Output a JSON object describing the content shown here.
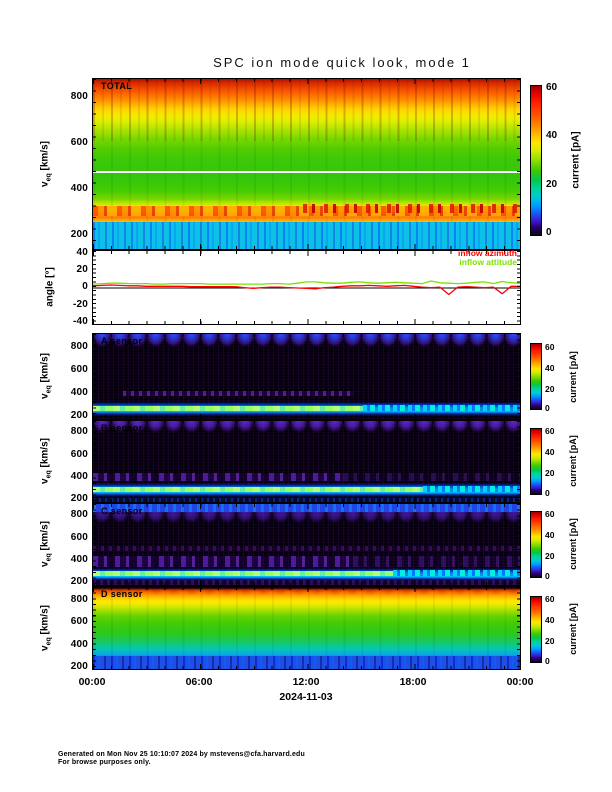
{
  "title": "SPC ion mode quick look, mode 1",
  "x_axis": {
    "tick_labels": [
      "00:00",
      "06:00",
      "12:00",
      "18:00",
      "00:00"
    ],
    "date_label": "2024-11-03"
  },
  "velocity_axis": {
    "v": "v",
    "sub": "eq",
    "unit": " [km/s]",
    "tick_labels": [
      "800",
      "600",
      "400",
      "200"
    ]
  },
  "angle_axis": {
    "label": "angle [°]",
    "tick_labels": [
      "40",
      "20",
      "0",
      "-20",
      "-40"
    ]
  },
  "colorbar": {
    "label": "current [pA]",
    "tick_labels": [
      "60",
      "40",
      "20",
      "0"
    ],
    "range": [
      0,
      60
    ],
    "scale_colors": [
      "#000000",
      "#28006e",
      "#3c14c8",
      "#0096ff",
      "#00c8dc",
      "#00c850",
      "#3cc800",
      "#8cdc00",
      "#d2ea00",
      "#ffe600",
      "#ffb400",
      "#ff8200",
      "#ff5000",
      "#ff1e00",
      "#9c0000"
    ]
  },
  "panels": {
    "total": {
      "label": "TOTAL"
    },
    "angle": {
      "legend": {
        "azimuth": "inflow azimuth",
        "attitude": "inflow attitude",
        "azimuth_color": "#ff0000",
        "attitude_color": "#7de000"
      }
    },
    "a": {
      "label": "A sensor"
    },
    "b": {
      "label": "B sensor"
    },
    "c": {
      "label": "C sensor"
    },
    "d": {
      "label": "D sensor"
    }
  },
  "footer": {
    "line1": "Generated on Mon Nov 25 10:10:07 2024 by mstevens@cfa.harvard.edu",
    "line2": "For browse purposes only."
  },
  "chart_data": [
    {
      "type": "heatmap",
      "panel": "TOTAL",
      "x_range_hours": [
        0,
        24
      ],
      "x_tick_labels": [
        "00:00",
        "06:00",
        "12:00",
        "18:00",
        "00:00"
      ],
      "date": "2024-11-03",
      "ylabel": "veq [km/s]",
      "y_ticks": [
        200,
        400,
        600,
        800
      ],
      "y_range": [
        140,
        890
      ],
      "colorbar": {
        "label": "current [pA]",
        "range": [
          0,
          60
        ],
        "ticks": [
          0,
          20,
          40,
          60
        ]
      },
      "description": "Current ~45-55 pA (red/orange) above 700 km/s decreasing smoothly to ~20-25 pA (green) at 350-650 km/s; thin white gap line at ~465 km/s; enhanced band ~30-55 pA (yellow-red) at 260-320 km/s, strongest 09:00-22:00; noisy ~5-12 pA (cyan/blue, vertical striping) below 250 km/s."
    },
    {
      "type": "line",
      "panel": "angle",
      "ylabel": "angle [deg]",
      "ylim": [
        -45,
        45
      ],
      "y_ticks": [
        -40,
        -20,
        0,
        20,
        40
      ],
      "x_start": 0,
      "x_step_hours": 0.5,
      "zero_line": true,
      "series": [
        {
          "name": "inflow attitude",
          "color": "#7de000",
          "values": [
            4.5,
            5,
            5.5,
            5.5,
            5,
            5,
            5,
            4.5,
            4.5,
            5,
            5,
            5,
            5,
            4.5,
            4.5,
            4.5,
            4.5,
            4.5,
            4.5,
            4.5,
            5,
            5,
            4.5,
            5.5,
            7,
            7,
            6,
            5.5,
            5.5,
            6.5,
            7,
            6,
            5.5,
            6,
            6.5,
            6,
            5.5,
            5,
            8,
            6,
            5.5,
            5,
            5.5,
            6.5,
            7,
            5,
            7.5,
            6,
            5.5
          ]
        },
        {
          "name": "inflow azimuth",
          "color": "#ff0000",
          "values": [
            2.5,
            3,
            3.5,
            3,
            2.5,
            2.5,
            2,
            2,
            2,
            2,
            2,
            1.5,
            1.5,
            1.5,
            1.5,
            1.5,
            1.5,
            0.5,
            -0.5,
            0.5,
            1,
            1,
            0.5,
            0,
            -0.5,
            -1,
            0.5,
            1,
            2,
            2.5,
            2.5,
            3,
            2.5,
            2,
            2.5,
            3,
            2,
            1,
            0.5,
            1,
            -7.5,
            1,
            1.5,
            1,
            0.5,
            1,
            -6.5,
            2,
            2
          ]
        }
      ]
    },
    {
      "type": "heatmap",
      "panel": "A sensor",
      "y_ticks": [
        200,
        400,
        600,
        800
      ],
      "y_range": [
        165,
        930
      ],
      "colorbar": {
        "label": "current [pA]",
        "range": [
          0,
          60
        ],
        "ticks": [
          0,
          20,
          40,
          60
        ]
      },
      "description": "Background ~0 pA (black); blue scalloped arcs 2-5 pA above 750 km/s; faint purple trace 1-2 pA near 400 km/s from ~02:00-13:00; narrow bright beam 10-25 pA (cyan with green-yellow core) at 260-300 km/s, choppier after 12:00."
    },
    {
      "type": "heatmap",
      "panel": "B sensor",
      "y_ticks": [
        200,
        400,
        600,
        800
      ],
      "y_range": [
        165,
        930
      ],
      "colorbar": {
        "label": "current [pA]",
        "range": [
          0,
          60
        ],
        "ticks": [
          0,
          20,
          40,
          60
        ]
      },
      "description": "Purple scalloped haze 1-3 pA above 720 km/s; purple band 2-4 pA near 400 km/s strongest 00:00-13:00; bright beam 10-30 pA (cyan with green core) at 250-300 km/s all day; weak blue strip below 200 km/s."
    },
    {
      "type": "heatmap",
      "panel": "C sensor",
      "y_ticks": [
        200,
        400,
        600,
        800
      ],
      "y_range": [
        165,
        930
      ],
      "colorbar": {
        "label": "current [pA]",
        "range": [
          0,
          60
        ],
        "ticks": [
          0,
          20,
          40,
          60
        ]
      },
      "description": "Blue strip 3-6 pA above 850 km/s; purple haze above 700 km/s; speckled purple band 2-5 pA near 400-450 km/s; bright beam 10-30 pA (cyan/green) at 260-300 km/s; purple noise below 200 km/s."
    },
    {
      "type": "heatmap",
      "panel": "D sensor",
      "y_ticks": [
        200,
        400,
        600,
        800
      ],
      "y_range": [
        165,
        930
      ],
      "colorbar": {
        "label": "current [pA]",
        "range": [
          0,
          60
        ],
        "ticks": [
          0,
          20,
          40,
          60
        ]
      },
      "description": "Smooth broad distribution: ~35-45 pA (orange) above 750 km/s grading to ~20 pA (green) at 350-550 km/s and ~8-15 pA (cyan) near 280 km/s; noisy 0-8 pA (blue, vertical striping) below 230 km/s."
    }
  ]
}
